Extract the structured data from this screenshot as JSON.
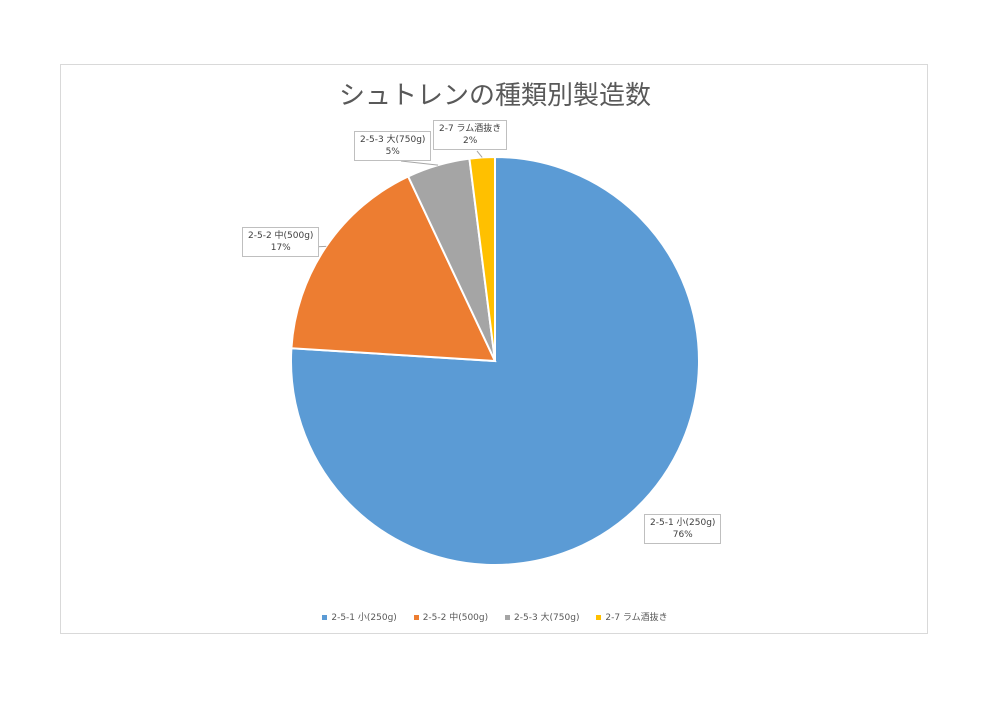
{
  "chart_data": {
    "type": "pie",
    "title": "シュトレンの種類別製造数",
    "slices": [
      {
        "label": "2-5-1 小(250g)",
        "value": 76,
        "percent_label": "76%",
        "color": "#5b9bd5"
      },
      {
        "label": "2-5-2 中(500g)",
        "value": 17,
        "percent_label": "17%",
        "color": "#ed7d31"
      },
      {
        "label": "2-5-3 大(750g)",
        "value": 5,
        "percent_label": "5%",
        "color": "#a5a5a5"
      },
      {
        "label": "2-7 ラム酒抜き",
        "value": 2,
        "percent_label": "2%",
        "color": "#ffc000"
      }
    ],
    "legend_position": "bottom"
  }
}
